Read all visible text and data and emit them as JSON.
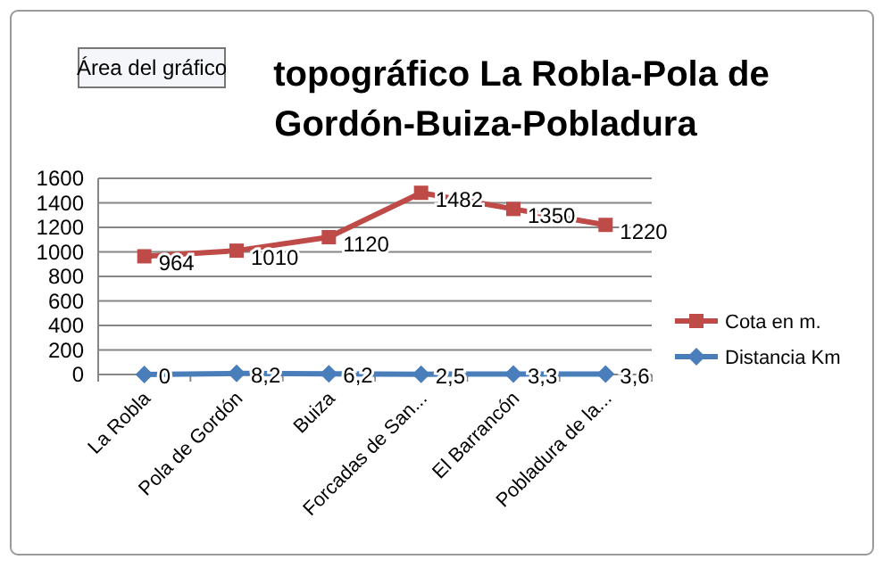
{
  "chart_data": {
    "type": "line",
    "title": "topográfico La Robla-Pola de Gordón-Buiza-Pobladura",
    "annotations": [
      "Área del gráfico"
    ],
    "categories": [
      "La Robla",
      "Pola de Gordón",
      "Buiza",
      "Forcadas de San...",
      "El Barrancón",
      "Pobladura de la..."
    ],
    "series": [
      {
        "name": "Cota en m.",
        "color": "#be4b48",
        "marker": "square",
        "values": [
          964,
          1010,
          1120,
          1482,
          1350,
          1220
        ],
        "value_labels": [
          "964",
          "1010",
          "1120",
          "1482",
          "1350",
          "1220"
        ]
      },
      {
        "name": "Distancia Km",
        "color": "#4a7ebb",
        "marker": "diamond",
        "values": [
          0,
          8.2,
          6.2,
          2.5,
          3.3,
          3.6
        ],
        "value_labels": [
          "0",
          "8,2",
          "6,2",
          "2,5",
          "3,3",
          "3,6"
        ]
      }
    ],
    "ylim": [
      0,
      1600
    ],
    "yticks": [
      0,
      200,
      400,
      600,
      800,
      1000,
      1200,
      1400,
      1600
    ],
    "grid": "y",
    "legend": "right"
  }
}
